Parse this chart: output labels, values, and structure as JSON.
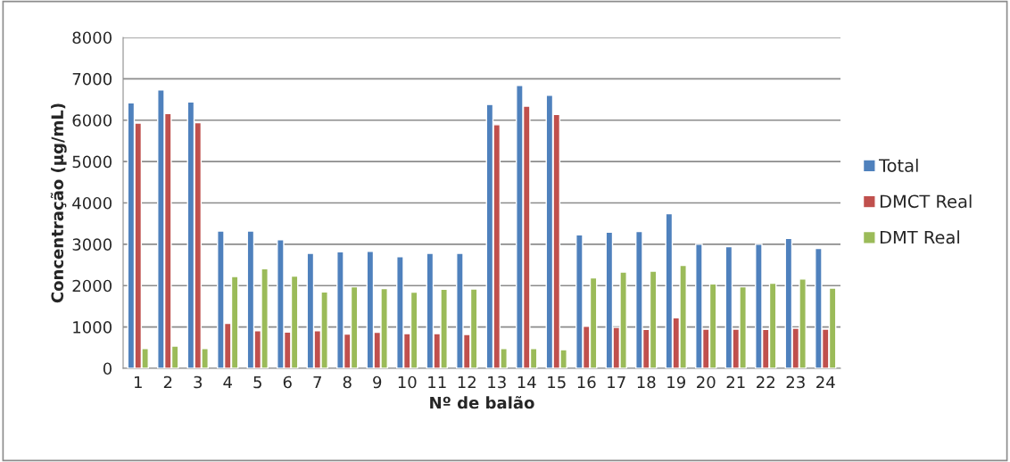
{
  "chart_data": {
    "type": "bar",
    "xlabel": "Nº de balão",
    "ylabel": "Concentração (µg/mL)",
    "categories": [
      "1",
      "2",
      "3",
      "4",
      "5",
      "6",
      "7",
      "8",
      "9",
      "10",
      "11",
      "12",
      "13",
      "14",
      "15",
      "16",
      "17",
      "18",
      "19",
      "20",
      "21",
      "22",
      "23",
      "24"
    ],
    "series": [
      {
        "name": "Total",
        "color": "#4f81bd",
        "values": [
          6420,
          6730,
          6440,
          3320,
          3320,
          3110,
          2780,
          2820,
          2830,
          2700,
          2780,
          2780,
          6380,
          6840,
          6600,
          3230,
          3290,
          3310,
          3740,
          3000,
          2940,
          3000,
          3140,
          2900
        ]
      },
      {
        "name": "DMCT Real",
        "color": "#c0504d",
        "values": [
          5930,
          6160,
          5940,
          1090,
          910,
          880,
          910,
          830,
          870,
          840,
          840,
          820,
          5890,
          6340,
          6140,
          1020,
          990,
          940,
          1220,
          950,
          950,
          940,
          970,
          950
        ]
      },
      {
        "name": "DMT Real",
        "color": "#9bbb59",
        "values": [
          480,
          540,
          480,
          2220,
          2410,
          2230,
          1850,
          1970,
          1930,
          1840,
          1910,
          1920,
          480,
          480,
          450,
          2190,
          2330,
          2350,
          2490,
          2040,
          1970,
          2060,
          2160,
          1940
        ]
      }
    ],
    "ylim": [
      0,
      8000
    ],
    "yticks": [
      0,
      1000,
      2000,
      3000,
      4000,
      5000,
      6000,
      7000,
      8000
    ],
    "grid": "y",
    "legend": "right"
  }
}
